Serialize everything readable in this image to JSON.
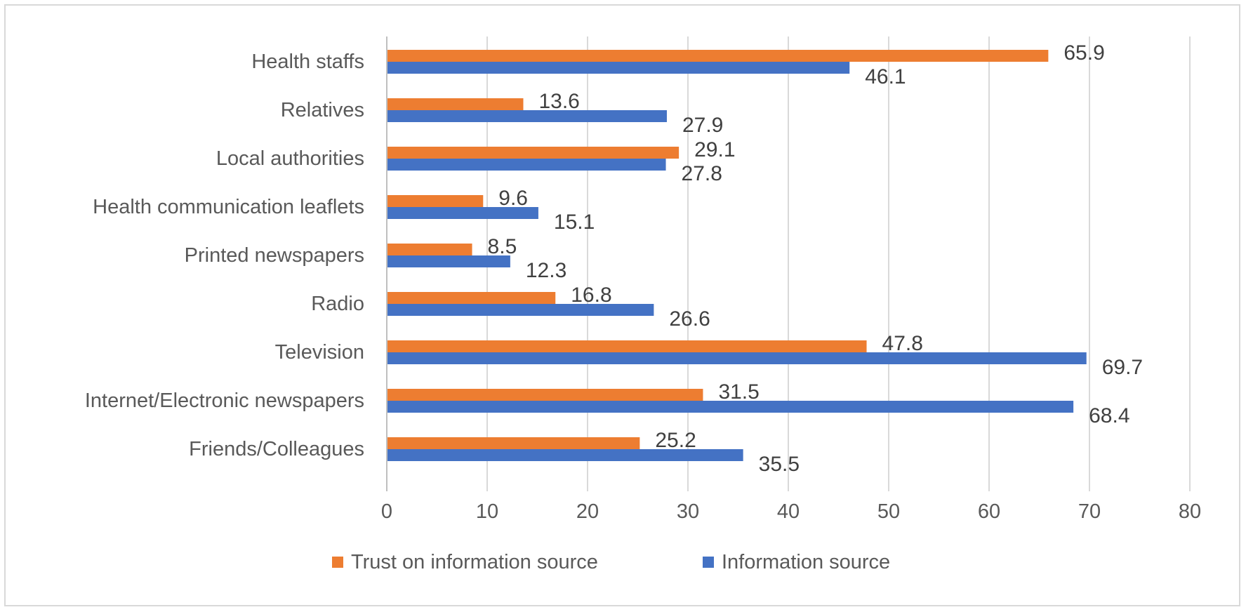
{
  "chart_data": {
    "type": "bar",
    "orientation": "horizontal",
    "title": "",
    "xlabel": "",
    "ylabel": "",
    "xlim": [
      0,
      80
    ],
    "x_ticks": [
      0,
      10,
      20,
      30,
      40,
      50,
      60,
      70,
      80
    ],
    "grid": true,
    "legend_position": "bottom",
    "categories": [
      "Health staffs",
      "Relatives",
      "Local authorities",
      "Health communication leaflets",
      "Printed newspapers",
      "Radio",
      "Television",
      "Internet/Electronic newspapers",
      "Friends/Colleagues"
    ],
    "series": [
      {
        "name": "Trust on information source",
        "color": "#ED7D31",
        "values": [
          65.9,
          13.6,
          29.1,
          9.6,
          8.5,
          16.8,
          47.8,
          31.5,
          25.2
        ],
        "labels": [
          "65.9",
          "13.6",
          "29.1",
          "9.6",
          "8.5",
          "16.8",
          "47.8",
          "31.5",
          "25.2"
        ]
      },
      {
        "name": "Information source",
        "color": "#4472C4",
        "values": [
          46.1,
          27.9,
          27.8,
          15.1,
          12.3,
          26.6,
          69.7,
          68.4,
          35.5
        ],
        "labels": [
          "46.1",
          "27.9",
          "27.8",
          "15.1",
          "12.3",
          "26.6",
          "69.7",
          "68.4",
          "35.5"
        ]
      }
    ]
  }
}
